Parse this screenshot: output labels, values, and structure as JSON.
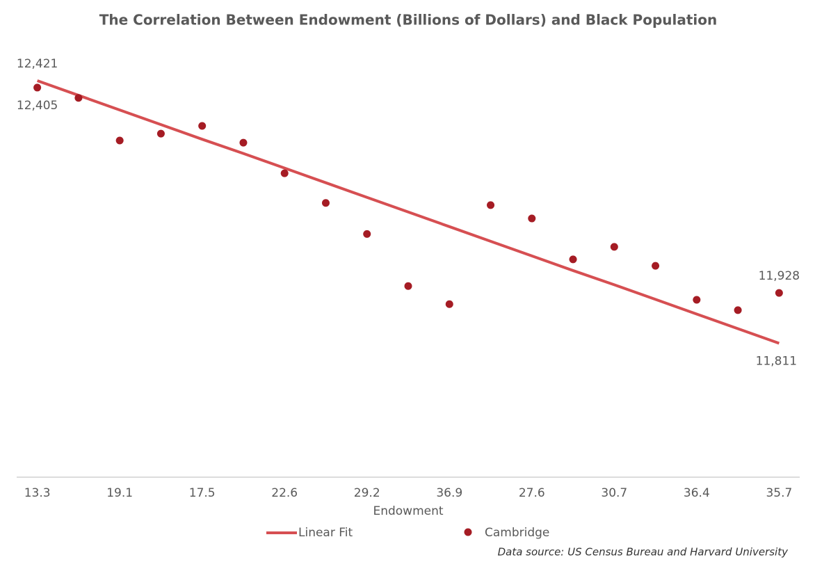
{
  "chart_data": {
    "type": "scatter",
    "title": "The Correlation Between Endowment (Billions of Dollars) and Black Population",
    "x_label": "Endowment",
    "source": "Data source: US Census Bureau and Harvard University",
    "categories": [
      "13.3",
      null,
      "19.1",
      null,
      "17.5",
      null,
      "22.6",
      null,
      "29.2",
      null,
      "36.9",
      null,
      "27.6",
      null,
      "30.7",
      null,
      "36.4",
      null,
      "35.7"
    ],
    "ylim": [
      11500,
      12560
    ],
    "series": [
      {
        "name": "Linear Fit",
        "mark": "line",
        "color": "#d64f52",
        "values": [
          12421,
          12387,
          12353,
          12319,
          12285,
          12252,
          12218,
          12184,
          12150,
          12116,
          12082,
          12048,
          12014,
          11980,
          11947,
          11913,
          11879,
          11845,
          11811
        ],
        "value_labels": [
          "12,421",
          null,
          null,
          null,
          null,
          null,
          null,
          null,
          null,
          null,
          null,
          null,
          null,
          null,
          null,
          null,
          null,
          null,
          "11,811"
        ]
      },
      {
        "name": "Cambridge",
        "mark": "point",
        "color": "#a51c24",
        "values": [
          12405,
          12381,
          12282,
          12298,
          12316,
          12277,
          12206,
          12137,
          12065,
          11944,
          11902,
          12132,
          12101,
          12006,
          12035,
          11991,
          11912,
          11888,
          11928
        ],
        "value_labels": [
          "12,405",
          null,
          null,
          null,
          null,
          null,
          null,
          null,
          null,
          null,
          null,
          null,
          null,
          null,
          null,
          null,
          null,
          null,
          "11,928"
        ]
      }
    ]
  }
}
